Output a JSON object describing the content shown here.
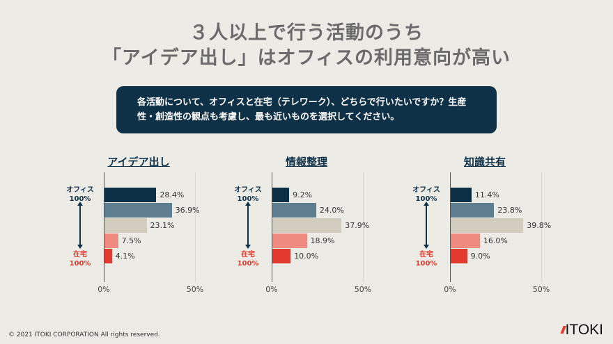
{
  "title_lines": [
    "３人以上で行う活動のうち",
    "「アイデア出し」はオフィスの利用意向が高い"
  ],
  "question": "各活動について、オフィスと在宅（テレワーク）、どちらで行いたいですか？生産性・創造性の観点も考慮し、最も近いものを選択してください。",
  "colors": [
    "#0d2f45",
    "#5f7f91",
    "#d3cdc0",
    "#ef8a80",
    "#e23a2e"
  ],
  "chart_data": [
    {
      "type": "bar",
      "orientation": "horizontal",
      "title": "アイデア出し",
      "values": [
        28.4,
        36.9,
        23.1,
        7.5,
        4.1
      ],
      "labels": [
        "28.4%",
        "36.9%",
        "23.1%",
        "7.5%",
        "4.1%"
      ],
      "xlim": [
        0,
        50
      ],
      "ticks": [
        "0%",
        "50%"
      ]
    },
    {
      "type": "bar",
      "orientation": "horizontal",
      "title": "情報整理",
      "values": [
        9.2,
        24.0,
        37.9,
        18.9,
        10.0
      ],
      "labels": [
        "9.2%",
        "24.0%",
        "37.9%",
        "18.9%",
        "10.0%"
      ],
      "xlim": [
        0,
        50
      ],
      "ticks": [
        "0%",
        "50%"
      ]
    },
    {
      "type": "bar",
      "orientation": "horizontal",
      "title": "知識共有",
      "values": [
        11.4,
        23.8,
        39.8,
        16.0,
        9.0
      ],
      "labels": [
        "11.4%",
        "23.8%",
        "39.8%",
        "16.0%",
        "9.0%"
      ],
      "xlim": [
        0,
        50
      ],
      "ticks": [
        "0%",
        "50%"
      ]
    }
  ],
  "scale_labels": {
    "top_line1": "オフィス",
    "top_line2": "100%",
    "bottom_line1": "在宅",
    "bottom_line2": "100%",
    "top_color": "#0f3148",
    "bottom_color": "#e23a2e"
  },
  "footer": "© 2021 ITOKI CORPORATION  All rights reserved.",
  "logo": {
    "slashes": "///",
    "text": "ITOKI"
  }
}
